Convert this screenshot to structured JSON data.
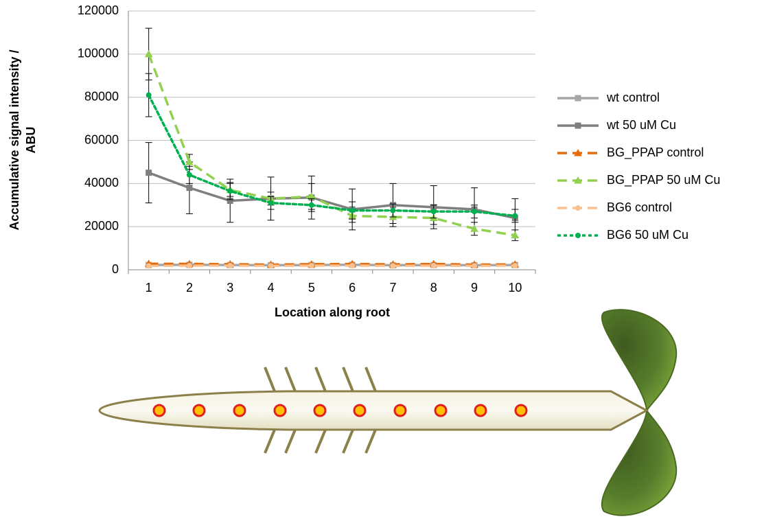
{
  "chart_data": {
    "type": "line",
    "xlabel": "Location along root",
    "ylabel": [
      "Accumulative signal intensity /",
      "ABU"
    ],
    "categories": [
      "1",
      "2",
      "3",
      "4",
      "5",
      "6",
      "7",
      "8",
      "9",
      "10"
    ],
    "ylim": [
      0,
      120000
    ],
    "yticks": [
      0,
      20000,
      40000,
      60000,
      80000,
      100000,
      120000
    ],
    "grid": true,
    "legend": "right",
    "series": [
      {
        "name": "wt control",
        "color": "#a6a6a6",
        "dash": "solid",
        "marker": "square",
        "values": [
          2200,
          2300,
          2200,
          2100,
          2200,
          2300,
          2100,
          2200,
          2100,
          2200
        ]
      },
      {
        "name": "wt 50 uM Cu",
        "color": "#7f7f7f",
        "dash": "solid",
        "marker": "square",
        "values": [
          45000,
          38000,
          32000,
          33000,
          33500,
          28000,
          30000,
          29000,
          28000,
          24000
        ],
        "errors": [
          14000,
          12000,
          10000,
          10000,
          10000,
          9500,
          10000,
          10000,
          10000,
          9000
        ]
      },
      {
        "name": "BG_PPAP control",
        "color": "#e46c0a",
        "dash": "dash",
        "marker": "triangle",
        "values": [
          2800,
          2700,
          2600,
          2400,
          2600,
          2700,
          2500,
          2700,
          2400,
          2500
        ]
      },
      {
        "name": "BG_PPAP 50 uM Cu",
        "color": "#92d050",
        "dash": "dash",
        "marker": "triangle",
        "values": [
          100000,
          50000,
          37000,
          33000,
          34000,
          25000,
          24500,
          24000,
          19000,
          16000
        ],
        "errors": [
          12000,
          3500,
          3000,
          3000,
          6000,
          3000,
          3000,
          3000,
          3000,
          2500
        ]
      },
      {
        "name": "BG6 control",
        "color": "#fac090",
        "dash": "dash",
        "marker": "circle",
        "values": [
          1800,
          1900,
          1900,
          1800,
          1900,
          1900,
          1800,
          1900,
          1800,
          1900
        ]
      },
      {
        "name": "BG6 50 uM Cu",
        "color": "#00b050",
        "dash": "dot",
        "marker": "circle",
        "values": [
          81000,
          44000,
          36500,
          31000,
          30000,
          27500,
          27500,
          27000,
          27000,
          25000
        ],
        "errors": [
          10000,
          4000,
          4000,
          3000,
          3000,
          4000,
          3000,
          3000,
          3000,
          3000
        ]
      }
    ]
  }
}
